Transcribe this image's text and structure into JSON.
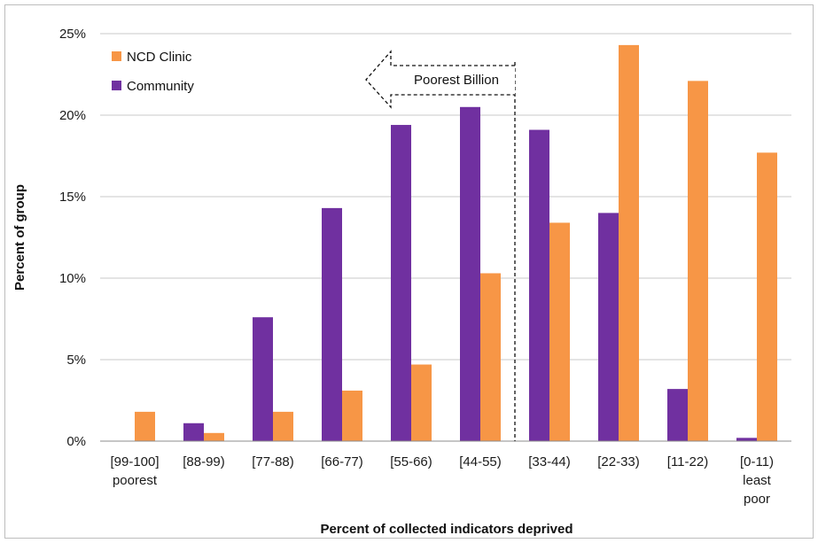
{
  "chart_data": {
    "type": "bar",
    "categories": [
      [
        "[99-100]",
        "poorest"
      ],
      [
        "[88-99)"
      ],
      [
        "[77-88)"
      ],
      [
        "[66-77)"
      ],
      [
        "[55-66)"
      ],
      [
        "[44-55)"
      ],
      [
        "[33-44)"
      ],
      [
        "[22-33)"
      ],
      [
        "[11-22)"
      ],
      [
        "[0-11)",
        "least",
        "poor"
      ]
    ],
    "series": [
      {
        "name": "Community",
        "color": "#7030a0",
        "values": [
          0.0,
          1.1,
          7.6,
          14.3,
          19.4,
          20.5,
          19.1,
          14.0,
          3.2,
          0.2
        ]
      },
      {
        "name": "NCD Clinic",
        "color": "#f79646",
        "values": [
          1.8,
          0.5,
          1.8,
          3.1,
          4.7,
          10.3,
          13.4,
          24.3,
          22.1,
          17.7
        ]
      }
    ],
    "xlabel": "Percent of collected indicators deprived",
    "ylabel": "Percent of group",
    "ylim": [
      0,
      25
    ],
    "yticks": [
      0,
      5,
      10,
      15,
      20,
      25
    ],
    "ytick_format": "%",
    "grid": "horizontal",
    "legend": {
      "placement": "top-left",
      "order": [
        "NCD Clinic",
        "Community"
      ]
    },
    "annotation": {
      "text": "Poorest Billion",
      "divider_between": [
        "[44-55)",
        "[33-44)"
      ],
      "arrow_direction": "left"
    }
  }
}
